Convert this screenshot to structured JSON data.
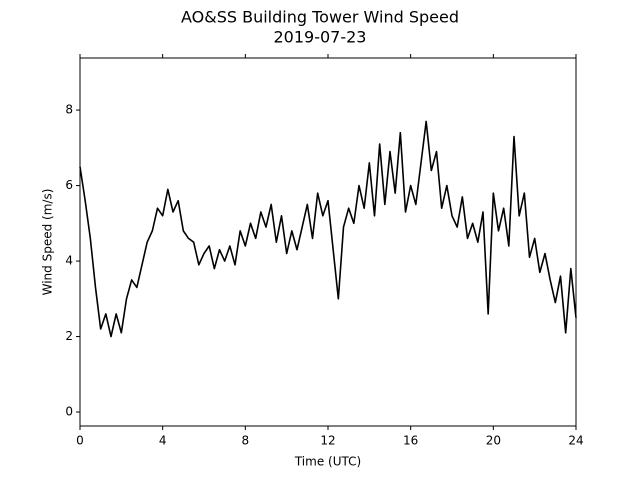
{
  "chart_data": {
    "type": "line",
    "title": "AO&SS Building Tower Wind Speed",
    "subtitle": "2019-07-23",
    "x_label": "Time (UTC)",
    "y_label": "Wind Speed (m/s)",
    "x": [
      0,
      0.25,
      0.5,
      0.75,
      1,
      1.25,
      1.5,
      1.75,
      2,
      2.25,
      2.5,
      2.75,
      3,
      3.25,
      3.5,
      3.75,
      4,
      4.25,
      4.5,
      4.75,
      5,
      5.25,
      5.5,
      5.75,
      6,
      6.25,
      6.5,
      6.75,
      7,
      7.25,
      7.5,
      7.75,
      8,
      8.25,
      8.5,
      8.75,
      9,
      9.25,
      9.5,
      9.75,
      10,
      10.25,
      10.5,
      10.75,
      11,
      11.25,
      11.5,
      11.75,
      12,
      12.25,
      12.5,
      12.75,
      13,
      13.25,
      13.5,
      13.75,
      14,
      14.25,
      14.5,
      14.75,
      15,
      15.25,
      15.5,
      15.75,
      16,
      16.25,
      16.5,
      16.75,
      17,
      17.25,
      17.5,
      17.75,
      18,
      18.25,
      18.5,
      18.75,
      19,
      19.25,
      19.5,
      19.75,
      20,
      20.25,
      20.5,
      20.75,
      21,
      21.25,
      21.5,
      21.75,
      22,
      22.25,
      22.5,
      22.75,
      23,
      23.25,
      23.5,
      23.75,
      24
    ],
    "series": [
      {
        "name": "Wind Speed",
        "color": "#000000",
        "values": [
          6.5,
          5.6,
          4.6,
          3.3,
          2.2,
          2.6,
          2.0,
          2.6,
          2.1,
          3.0,
          3.5,
          3.3,
          3.9,
          4.5,
          4.8,
          5.4,
          5.2,
          5.9,
          5.3,
          5.6,
          4.8,
          4.6,
          4.5,
          3.9,
          4.2,
          4.4,
          3.8,
          4.3,
          4.0,
          4.4,
          3.9,
          4.8,
          4.4,
          5.0,
          4.6,
          5.3,
          4.9,
          5.5,
          4.5,
          5.2,
          4.2,
          4.8,
          4.3,
          4.9,
          5.5,
          4.6,
          5.8,
          5.2,
          5.6,
          4.3,
          3.0,
          4.9,
          5.4,
          5.0,
          6.0,
          5.4,
          6.6,
          5.2,
          7.1,
          5.5,
          6.9,
          5.8,
          7.4,
          5.3,
          6.0,
          5.5,
          6.6,
          7.7,
          6.4,
          6.9,
          5.4,
          6.0,
          5.2,
          4.9,
          5.7,
          4.6,
          5.0,
          4.5,
          5.3,
          2.6,
          5.8,
          4.8,
          5.4,
          4.4,
          7.3,
          5.2,
          5.8,
          4.1,
          4.6,
          3.7,
          4.2,
          3.5,
          2.9,
          3.6,
          2.1,
          3.8,
          2.5
        ]
      }
    ],
    "xlim": [
      0,
      24
    ],
    "xticks": [
      0,
      4,
      8,
      12,
      16,
      20,
      24
    ],
    "ylim": [
      -0.37,
      9.38
    ],
    "yticks": [
      0,
      2,
      4,
      6,
      8
    ],
    "grid": false
  }
}
